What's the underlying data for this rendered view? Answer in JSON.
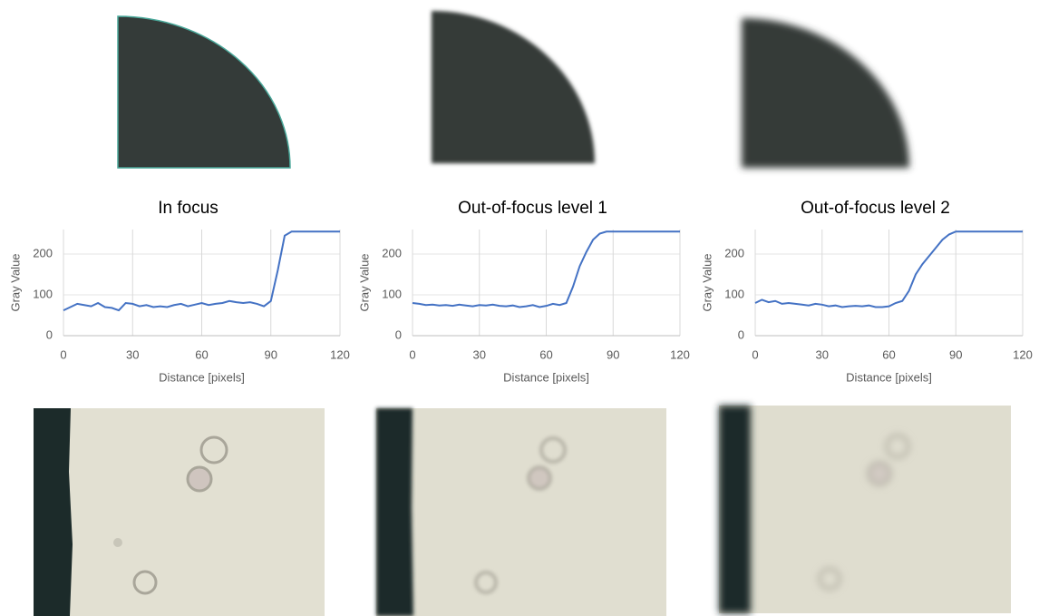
{
  "chart_data": [
    {
      "type": "line",
      "title": "In focus",
      "xlabel": "Distance [pixels]",
      "ylabel": "Gray Value",
      "color": "#4472c4",
      "x": [
        0,
        3,
        6,
        9,
        12,
        15,
        18,
        21,
        24,
        27,
        30,
        33,
        36,
        39,
        42,
        45,
        48,
        51,
        54,
        57,
        60,
        63,
        66,
        69,
        72,
        75,
        78,
        81,
        84,
        87,
        90,
        93,
        96,
        99,
        102,
        105,
        108,
        111,
        114,
        117,
        120
      ],
      "values": [
        62,
        70,
        78,
        75,
        72,
        80,
        70,
        68,
        62,
        80,
        78,
        72,
        75,
        70,
        72,
        70,
        75,
        78,
        72,
        76,
        80,
        75,
        78,
        80,
        85,
        82,
        80,
        82,
        78,
        72,
        85,
        160,
        245,
        255,
        255,
        255,
        255,
        255,
        255,
        255,
        255
      ],
      "xlim": [
        0,
        120
      ],
      "xticks": [
        0,
        30,
        60,
        90,
        120
      ],
      "ylim": [
        0,
        260
      ],
      "yticks": [
        0,
        100,
        200
      ],
      "grid": true
    },
    {
      "type": "line",
      "title": "Out-of-focus level 1",
      "xlabel": "Distance [pixels]",
      "ylabel": "Gray Value",
      "color": "#4472c4",
      "x": [
        0,
        3,
        6,
        9,
        12,
        15,
        18,
        21,
        24,
        27,
        30,
        33,
        36,
        39,
        42,
        45,
        48,
        51,
        54,
        57,
        60,
        63,
        66,
        69,
        72,
        75,
        78,
        81,
        84,
        87,
        90,
        93,
        96,
        99,
        102,
        105,
        108,
        111,
        114,
        117,
        120
      ],
      "values": [
        80,
        78,
        75,
        76,
        74,
        75,
        73,
        76,
        74,
        72,
        75,
        74,
        76,
        73,
        72,
        74,
        70,
        72,
        75,
        70,
        73,
        78,
        75,
        80,
        120,
        170,
        205,
        235,
        250,
        255,
        255,
        255,
        255,
        255,
        255,
        255,
        255,
        255,
        255,
        255,
        255
      ],
      "xlim": [
        0,
        120
      ],
      "xticks": [
        0,
        30,
        60,
        90,
        120
      ],
      "ylim": [
        0,
        260
      ],
      "yticks": [
        0,
        100,
        200
      ],
      "grid": true
    },
    {
      "type": "line",
      "title": "Out-of-focus level 2",
      "xlabel": "Distance [pixels]",
      "ylabel": "Gray Value",
      "color": "#4472c4",
      "x": [
        0,
        3,
        6,
        9,
        12,
        15,
        18,
        21,
        24,
        27,
        30,
        33,
        36,
        39,
        42,
        45,
        48,
        51,
        54,
        57,
        60,
        63,
        66,
        69,
        72,
        75,
        78,
        81,
        84,
        87,
        90,
        93,
        96,
        99,
        102,
        105,
        108,
        111,
        114,
        117,
        120
      ],
      "values": [
        80,
        88,
        82,
        85,
        78,
        80,
        78,
        76,
        74,
        78,
        76,
        72,
        74,
        70,
        72,
        73,
        72,
        74,
        70,
        70,
        72,
        80,
        85,
        110,
        150,
        175,
        195,
        215,
        235,
        248,
        255,
        255,
        255,
        255,
        255,
        255,
        255,
        255,
        255,
        255,
        255
      ],
      "xlim": [
        0,
        120
      ],
      "xticks": [
        0,
        30,
        60,
        90,
        120
      ],
      "ylim": [
        0,
        260
      ],
      "yticks": [
        0,
        100,
        200
      ],
      "grid": true
    }
  ]
}
